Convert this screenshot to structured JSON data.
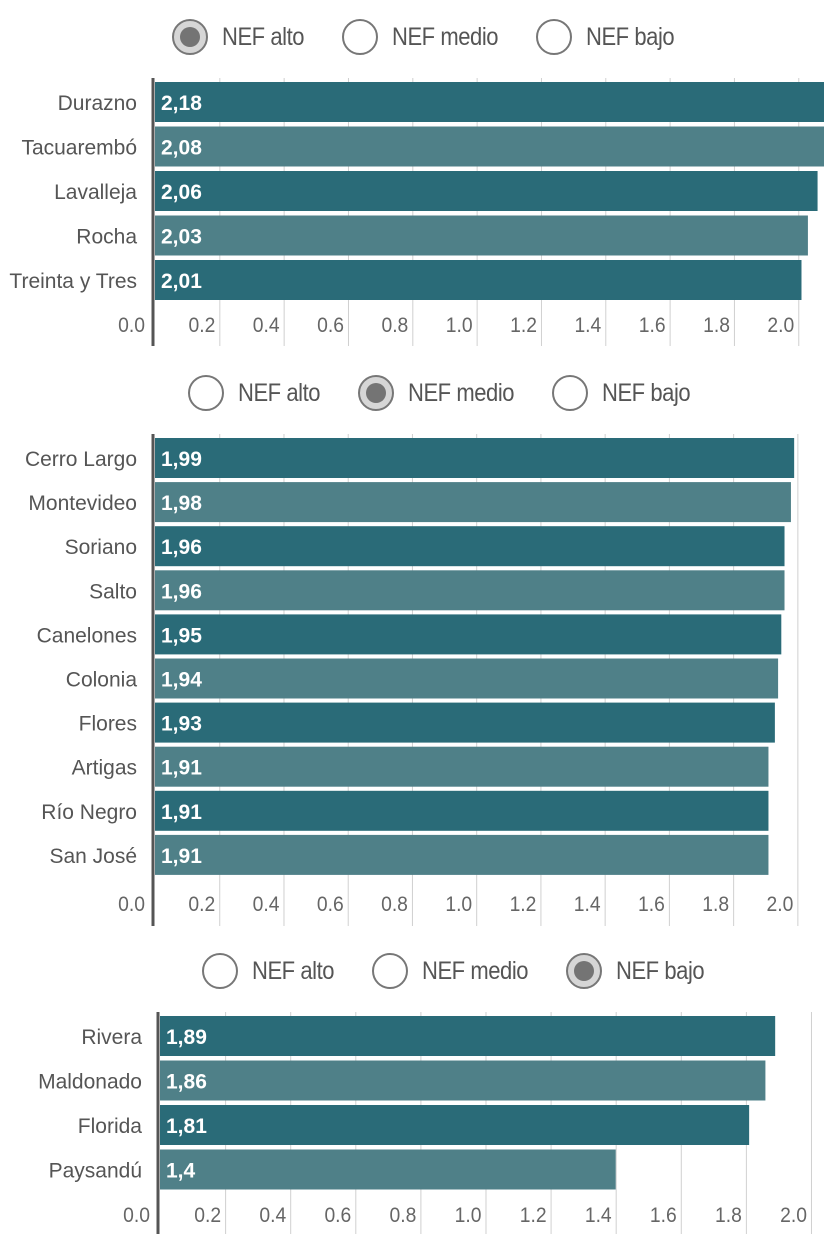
{
  "colors": {
    "bar_dark": "#2a6b78",
    "bar_light": "#4f8088",
    "grid": "#d0d0d0",
    "axis": "#555555",
    "label": "#555555"
  },
  "panels": [
    {
      "radio": {
        "options": [
          "NEF alto",
          "NEF medio",
          "NEF bajo"
        ],
        "selected_index": 0
      },
      "chart_data": {
        "type": "bar",
        "orientation": "horizontal",
        "categories": [
          "Durazno",
          "Tacuarembó",
          "Lavalleja",
          "Rocha",
          "Treinta y Tres"
        ],
        "values": [
          2.18,
          2.08,
          2.06,
          2.03,
          2.01
        ],
        "value_labels": [
          "2,18",
          "2,08",
          "2,06",
          "2,03",
          "2,01"
        ],
        "xlim": [
          0,
          2.08
        ],
        "ticks": [
          "0.0",
          "0.2",
          "0.4",
          "0.6",
          "0.8",
          "1.0",
          "1.2",
          "1.4",
          "1.6",
          "1.8",
          "2.0"
        ],
        "grid": true
      }
    },
    {
      "radio": {
        "options": [
          "NEF alto",
          "NEF medio",
          "NEF bajo"
        ],
        "selected_index": 1
      },
      "chart_data": {
        "type": "bar",
        "orientation": "horizontal",
        "categories": [
          "Cerro Largo",
          "Montevideo",
          "Soriano",
          "Salto",
          "Canelones",
          "Colonia",
          "Flores",
          "Artigas",
          "Río Negro",
          "San José"
        ],
        "values": [
          1.99,
          1.98,
          1.96,
          1.96,
          1.95,
          1.94,
          1.93,
          1.91,
          1.91,
          1.91
        ],
        "value_labels": [
          "1,99",
          "1,98",
          "1,96",
          "1,96",
          "1,95",
          "1,94",
          "1,93",
          "1,91",
          "1,91",
          "1,91"
        ],
        "xlim": [
          0,
          2.03
        ],
        "ticks": [
          "0.0",
          "0.2",
          "0.4",
          "0.6",
          "0.8",
          "1.0",
          "1.2",
          "1.4",
          "1.6",
          "1.8",
          "2.0"
        ],
        "grid": true
      }
    },
    {
      "radio": {
        "options": [
          "NEF alto",
          "NEF medio",
          "NEF bajo"
        ],
        "selected_index": 2
      },
      "chart_data": {
        "type": "bar",
        "orientation": "horizontal",
        "categories": [
          "Rivera",
          "Maldonado",
          "Florida",
          "Paysandú"
        ],
        "values": [
          1.89,
          1.86,
          1.81,
          1.4
        ],
        "value_labels": [
          "1,89",
          "1,86",
          "1,81",
          "1,4"
        ],
        "xlim": [
          0,
          2.04
        ],
        "ticks": [
          "0.0",
          "0.2",
          "0.4",
          "0.6",
          "0.8",
          "1.0",
          "1.2",
          "1.4",
          "1.6",
          "1.8",
          "2.0"
        ],
        "grid": true
      }
    }
  ]
}
